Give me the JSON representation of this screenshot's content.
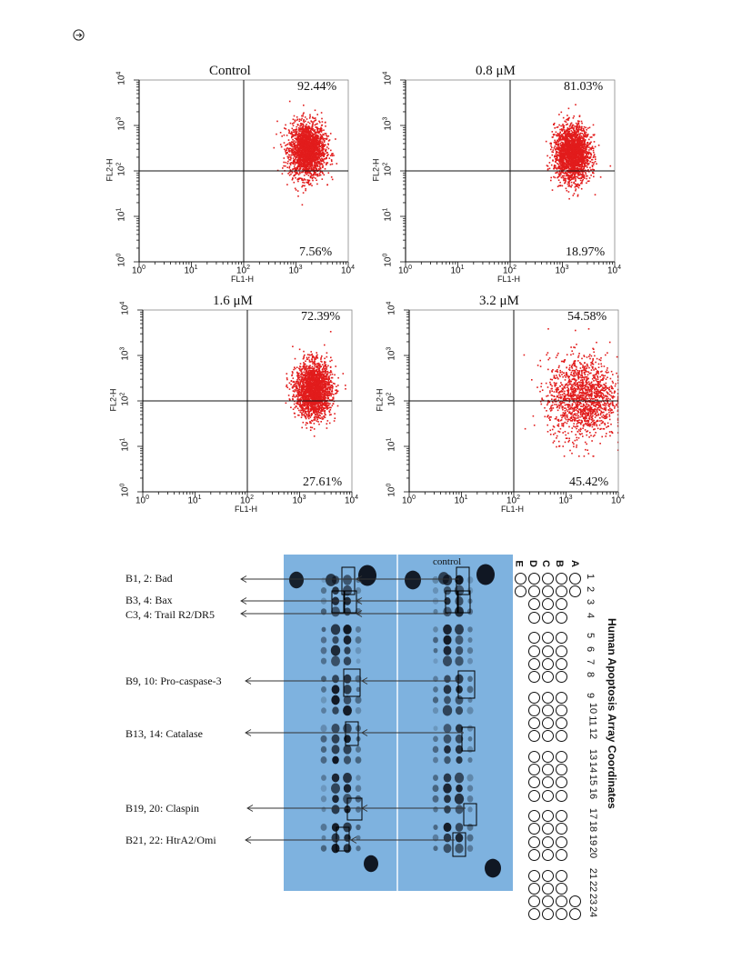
{
  "header": {
    "icon": "circled-arrow-icon"
  },
  "flow": {
    "x_axis_label": "FL1-H",
    "y_axis_label": "FL2-H",
    "ticks": [
      "0",
      "1",
      "2",
      "3",
      "4"
    ]
  },
  "chart_data": [
    {
      "type": "scatter",
      "title": "Control",
      "xlabel": "FL1-H",
      "ylabel": "FL2-H",
      "xscale": "log",
      "yscale": "log",
      "xlim": [
        1,
        10000
      ],
      "ylim": [
        1,
        10000
      ],
      "quadrants": {
        "upper_right": "92.44%",
        "lower_right": "7.56%"
      },
      "cluster": {
        "x_center": 1600,
        "y_center": 300,
        "spread": "tight"
      }
    },
    {
      "type": "scatter",
      "title": "0.8 μM",
      "xlabel": "FL1-H",
      "ylabel": "FL2-H",
      "xscale": "log",
      "yscale": "log",
      "xlim": [
        1,
        10000
      ],
      "ylim": [
        1,
        10000
      ],
      "quadrants": {
        "upper_right": "81.03%",
        "lower_right": "18.97%"
      },
      "cluster": {
        "x_center": 1500,
        "y_center": 250,
        "spread": "tight"
      }
    },
    {
      "type": "scatter",
      "title": "1.6 μM",
      "xlabel": "FL1-H",
      "ylabel": "FL2-H",
      "xscale": "log",
      "yscale": "log",
      "xlim": [
        1,
        10000
      ],
      "ylim": [
        1,
        10000
      ],
      "quadrants": {
        "upper_right": "72.39%",
        "lower_right": "27.61%"
      },
      "cluster": {
        "x_center": 1800,
        "y_center": 180,
        "spread": "tight"
      }
    },
    {
      "type": "scatter",
      "title": "3.2 μM",
      "xlabel": "FL1-H",
      "ylabel": "FL2-H",
      "xscale": "log",
      "yscale": "log",
      "xlim": [
        1,
        10000
      ],
      "ylim": [
        1,
        10000
      ],
      "quadrants": {
        "upper_right": "54.58%",
        "lower_right": "45.42%"
      },
      "cluster": {
        "x_center": 2000,
        "y_center": 120,
        "spread": "wide"
      }
    }
  ],
  "blot": {
    "control_label": "control",
    "labels": [
      "B1, 2: Bad",
      "B3, 4: Bax",
      "C3, 4: Trail R2/DR5",
      "B9, 10: Pro-caspase-3",
      "B13, 14: Catalase",
      "B19, 20: Claspin",
      "B21, 22: HtrA2/Omi"
    ],
    "coordinates_title": "Human Apoptosis Array Coordinates",
    "row_letters": [
      "A",
      "B",
      "C",
      "D",
      "E"
    ],
    "numbers": [
      "1",
      "2",
      "3",
      "4",
      "5",
      "6",
      "7",
      "8",
      "9",
      "10",
      "11",
      "12",
      "13",
      "14",
      "15",
      "16",
      "17",
      "18",
      "19",
      "20",
      "21",
      "22",
      "23",
      "24"
    ]
  }
}
